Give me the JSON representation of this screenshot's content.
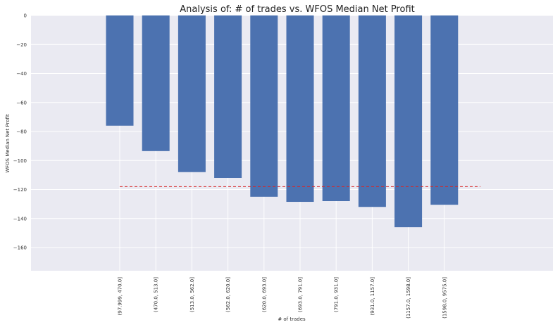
{
  "chart_data": {
    "type": "bar",
    "title": "Analysis of: # of trades vs. WFOS Median Net Profit",
    "xlabel": "# of trades",
    "ylabel": "WFOS Median Net Profit",
    "categories": [
      "(97.999, 470.0]",
      "(470.0, 513.0]",
      "(513.0, 562.0]",
      "(562.0, 620.0]",
      "(620.0, 693.0]",
      "(693.0, 791.0]",
      "(791.0, 931.0]",
      "(931.0, 1157.0]",
      "(1157.0, 1598.0]",
      "(1598.0, 9575.0]"
    ],
    "values": [
      -76,
      -93.5,
      -108,
      -112,
      -125,
      -128.5,
      -128,
      -132,
      -146,
      -130.5
    ],
    "reference_line": {
      "value": -118,
      "style": "dashed",
      "color": "#d62728"
    },
    "ylim": [
      -176,
      0
    ],
    "yticks": [
      0,
      -20,
      -40,
      -60,
      -80,
      -100,
      -120,
      -140,
      -160
    ],
    "grid": true,
    "colors": {
      "bar": "#4c72b0",
      "background": "#eaeaf2",
      "grid": "#ffffff"
    }
  }
}
